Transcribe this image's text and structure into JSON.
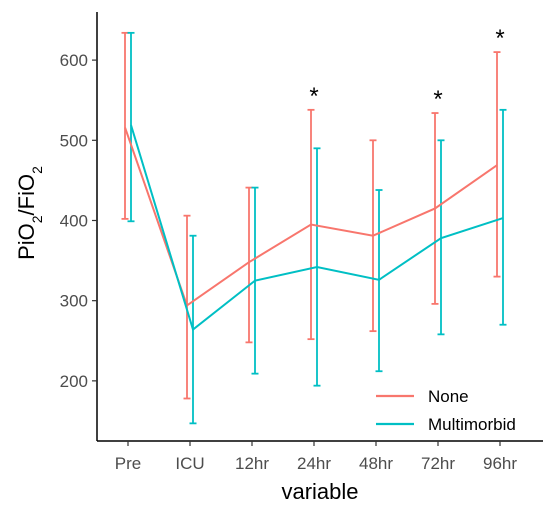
{
  "chart_data": {
    "type": "line",
    "xlabel": "variable",
    "ylabel": "PiO₂/FiO₂",
    "categories": [
      "Pre",
      "ICU",
      "12hr",
      "24hr",
      "48hr",
      "72hr",
      "96hr"
    ],
    "ylim": [
      125,
      660
    ],
    "yticks": [
      200,
      300,
      400,
      500,
      600
    ],
    "grid": false,
    "legend_position": "bottom-right",
    "series": [
      {
        "name": "None",
        "color": "#F8766D",
        "values": [
          516,
          294,
          348,
          395,
          381,
          415,
          469
        ],
        "error_low": [
          402,
          178,
          248,
          252,
          262,
          296,
          330
        ],
        "error_high": [
          634,
          406,
          441,
          538,
          500,
          534,
          610
        ]
      },
      {
        "name": "Multimorbid",
        "color": "#00BFC4",
        "values": [
          519,
          264,
          325,
          342,
          326,
          378,
          403
        ],
        "error_low": [
          399,
          147,
          209,
          194,
          212,
          258,
          270
        ],
        "error_high": [
          634,
          381,
          441,
          490,
          438,
          500,
          538
        ]
      }
    ],
    "annotations": [
      {
        "category": "24hr",
        "text": "*"
      },
      {
        "category": "72hr",
        "text": "*"
      },
      {
        "category": "96hr",
        "text": "*"
      }
    ]
  }
}
